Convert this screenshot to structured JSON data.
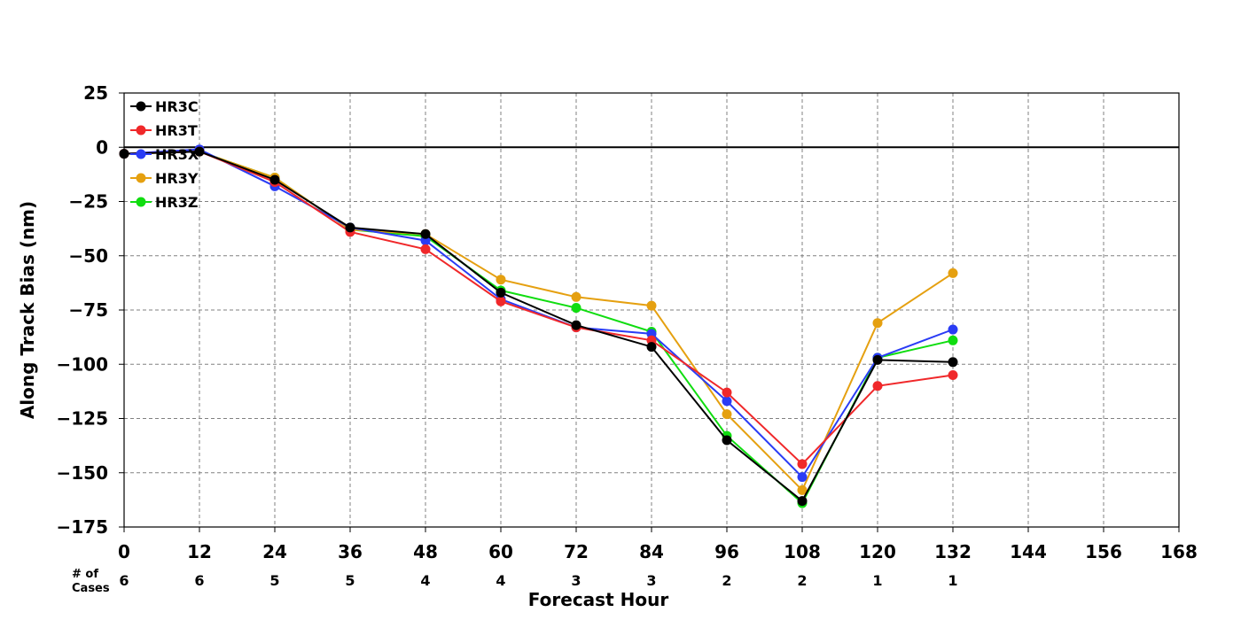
{
  "chart_data": {
    "type": "line",
    "xlabel": "Forecast Hour",
    "ylabel": "Along Track Bias (nm)",
    "xlim": [
      0,
      168
    ],
    "ylim": [
      -175,
      25
    ],
    "x_ticks": [
      0,
      12,
      24,
      36,
      48,
      60,
      72,
      84,
      96,
      108,
      120,
      132,
      144,
      156,
      168
    ],
    "y_ticks": [
      25,
      0,
      -25,
      -50,
      -75,
      -100,
      -125,
      -150,
      -175
    ],
    "y_tick_labels": [
      "25",
      "0",
      "−25",
      "−50",
      "−75",
      "−100",
      "−125",
      "−150",
      "−175"
    ],
    "grid": true,
    "legend_position": "top-left",
    "cases_label": [
      "# of",
      "Cases"
    ],
    "cases": [
      {
        "x": 0,
        "n": "6"
      },
      {
        "x": 12,
        "n": "6"
      },
      {
        "x": 24,
        "n": "5"
      },
      {
        "x": 36,
        "n": "5"
      },
      {
        "x": 48,
        "n": "4"
      },
      {
        "x": 60,
        "n": "4"
      },
      {
        "x": 72,
        "n": "3"
      },
      {
        "x": 84,
        "n": "3"
      },
      {
        "x": 96,
        "n": "2"
      },
      {
        "x": 108,
        "n": "2"
      },
      {
        "x": 120,
        "n": "1"
      },
      {
        "x": 132,
        "n": "1"
      }
    ],
    "x": [
      0,
      12,
      24,
      36,
      48,
      60,
      72,
      84,
      96,
      108,
      120,
      132
    ],
    "series": [
      {
        "name": "HR3C",
        "color": "#000000",
        "values": [
          -3,
          -2,
          -15,
          -37,
          -40,
          -67,
          -82,
          -92,
          -135,
          -163,
          -98,
          -99
        ]
      },
      {
        "name": "HR3T",
        "color": "#f0282a",
        "values": [
          -3,
          -2,
          -16,
          -39,
          -47,
          -71,
          -83,
          -89,
          -113,
          -146,
          -110,
          -105
        ]
      },
      {
        "name": "HR3X",
        "color": "#2a3cf5",
        "values": [
          -3,
          -1,
          -18,
          -37,
          -43,
          -70,
          -83,
          -86,
          -117,
          -152,
          -97,
          -84
        ]
      },
      {
        "name": "HR3Y",
        "color": "#e5a010",
        "values": [
          -3,
          -2,
          -14,
          -38,
          -40,
          -61,
          -69,
          -73,
          -123,
          -158,
          -81,
          -58
        ]
      },
      {
        "name": "HR3Z",
        "color": "#10dd10",
        "values": [
          -3,
          -2,
          -14,
          -38,
          -41,
          -66,
          -74,
          -85,
          -133,
          -164,
          -97,
          -89
        ]
      }
    ]
  }
}
